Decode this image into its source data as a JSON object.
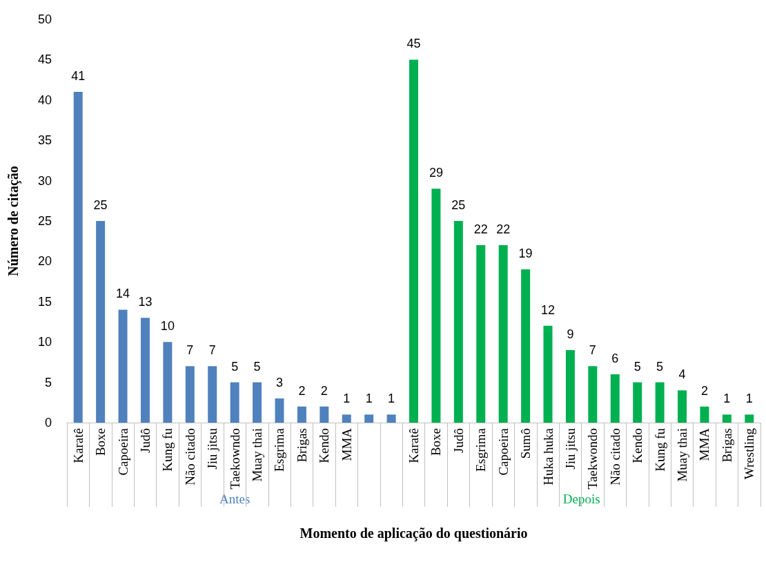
{
  "chart_data": {
    "type": "bar",
    "xlabel": "Momento de aplicação do questionário",
    "ylabel": "Número de citação",
    "categories": [
      "Karatê",
      "Boxe",
      "Capoeira",
      "Judô",
      "Kung fu",
      "Não citado",
      "Jiu jitsu",
      "Taekowndo",
      "Muay thai",
      "Esgrima",
      "Brigas",
      "Kendo",
      "MMA",
      null,
      null,
      "Karatê",
      "Boxe",
      "Judô",
      "Esgrima",
      "Capoeira",
      "Sumô",
      "Huka huka",
      "Jiu jitsu",
      "Taekwondo",
      "Não citado",
      "Kendo",
      "Kung fu",
      "Muay thai",
      "MMA",
      "Brigas",
      "Wrestling"
    ],
    "series": [
      {
        "name": "Antes",
        "color": "#4f81bd",
        "values": [
          41,
          25,
          14,
          13,
          10,
          7,
          7,
          5,
          5,
          3,
          2,
          2,
          1,
          1,
          1,
          null,
          null,
          null,
          null,
          null,
          null,
          null,
          null,
          null,
          null,
          null,
          null,
          null,
          null,
          null,
          null
        ]
      },
      {
        "name": "Depois",
        "color": "#00b050",
        "values": [
          null,
          null,
          null,
          null,
          null,
          null,
          null,
          null,
          null,
          null,
          null,
          null,
          null,
          null,
          null,
          45,
          29,
          25,
          22,
          22,
          19,
          12,
          9,
          7,
          6,
          5,
          5,
          4,
          2,
          1,
          1
        ]
      }
    ],
    "ylim": [
      0,
      50
    ],
    "yticks": [
      0,
      5,
      10,
      15,
      20,
      25,
      30,
      35,
      40,
      45,
      50
    ],
    "data_labels": true,
    "grid": false,
    "legend": false
  }
}
